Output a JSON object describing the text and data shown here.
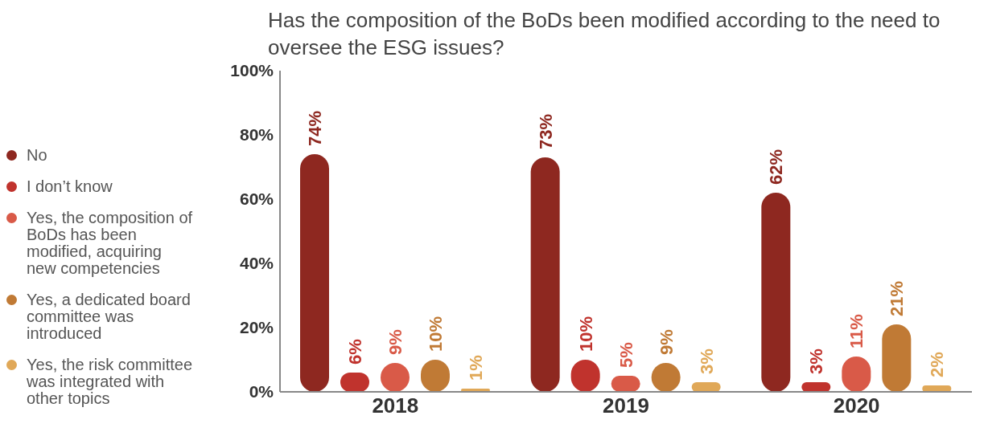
{
  "chart_data": {
    "type": "bar",
    "title": "Has the composition of the BoDs been modified according to the need to oversee the ESG issues?",
    "categories": [
      "2018",
      "2019",
      "2020"
    ],
    "series": [
      {
        "name": "No",
        "color": "#8e2820",
        "values": [
          74,
          73,
          62
        ],
        "value_labels": [
          "74%",
          "73%",
          "62%"
        ]
      },
      {
        "name": "I don’t know",
        "color": "#c0332d",
        "values": [
          6,
          10,
          3
        ],
        "value_labels": [
          "6%",
          "10%",
          "3%"
        ]
      },
      {
        "name": "Yes, the composition of BoDs has been modified, acquiring new competencies",
        "color": "#d95a48",
        "values": [
          9,
          5,
          11
        ],
        "value_labels": [
          "9%",
          "5%",
          "11%"
        ]
      },
      {
        "name": "Yes, a dedicated board committee was introduced",
        "color": "#c07a35",
        "values": [
          10,
          9,
          21
        ],
        "value_labels": [
          "10%",
          "9%",
          "21%"
        ]
      },
      {
        "name": "Yes, the risk committee was integrated with other topics",
        "color": "#e0a858",
        "values": [
          1,
          3,
          2
        ],
        "value_labels": [
          "1%",
          "3%",
          "2%"
        ]
      }
    ],
    "ylim": [
      0,
      100
    ],
    "yticks": [
      {
        "value": 0,
        "label": "0%"
      },
      {
        "value": 20,
        "label": "20%"
      },
      {
        "value": 40,
        "label": "40%"
      },
      {
        "value": 60,
        "label": "60%"
      },
      {
        "value": 80,
        "label": "80%"
      },
      {
        "value": 100,
        "label": "100%"
      }
    ],
    "grid": false,
    "legend": "left"
  }
}
